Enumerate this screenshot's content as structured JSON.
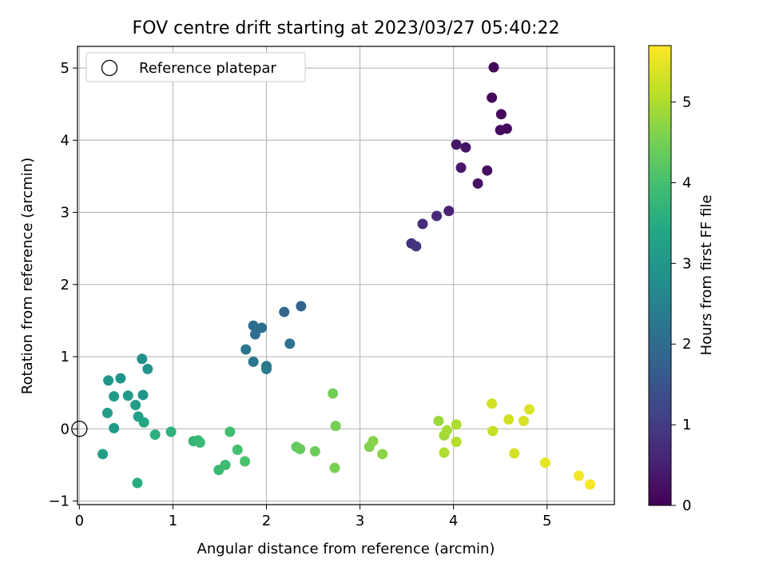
{
  "chart_data": {
    "type": "scatter",
    "title": "FOV centre drift starting at 2023/03/27 05:40:22",
    "xlabel": "Angular distance from reference (arcmin)",
    "ylabel": "Rotation from reference (arcmin)",
    "xlim": [
      -0.02,
      5.72
    ],
    "ylim": [
      -1.05,
      5.3
    ],
    "xticks": [
      "0",
      "1",
      "2",
      "3",
      "4",
      "5"
    ],
    "yticks": [
      "−1",
      "0",
      "1",
      "2",
      "3",
      "4",
      "5"
    ],
    "grid": true,
    "legend": {
      "position": "top-left",
      "entries": [
        "Reference platepar"
      ]
    },
    "reference_point": {
      "x": 0,
      "y": 0
    },
    "colorbar": {
      "label": "Hours from first FF file",
      "range": [
        0,
        5.7
      ],
      "ticks": [
        "0",
        "1",
        "2",
        "3",
        "4",
        "5"
      ],
      "colormap": "viridis"
    },
    "points": [
      {
        "x": 4.43,
        "y": 5.01,
        "h": 0.05
      },
      {
        "x": 4.41,
        "y": 4.59,
        "h": 0.1
      },
      {
        "x": 4.51,
        "y": 4.36,
        "h": 0.12
      },
      {
        "x": 4.57,
        "y": 4.16,
        "h": 0.15
      },
      {
        "x": 4.5,
        "y": 4.14,
        "h": 0.18
      },
      {
        "x": 4.03,
        "y": 3.94,
        "h": 0.35
      },
      {
        "x": 4.13,
        "y": 3.9,
        "h": 0.32
      },
      {
        "x": 4.08,
        "y": 3.62,
        "h": 0.38
      },
      {
        "x": 4.36,
        "y": 3.58,
        "h": 0.22
      },
      {
        "x": 4.26,
        "y": 3.4,
        "h": 0.28
      },
      {
        "x": 3.95,
        "y": 3.02,
        "h": 0.55
      },
      {
        "x": 3.82,
        "y": 2.95,
        "h": 0.62
      },
      {
        "x": 3.67,
        "y": 2.84,
        "h": 0.7
      },
      {
        "x": 3.55,
        "y": 2.57,
        "h": 0.82
      },
      {
        "x": 3.6,
        "y": 2.53,
        "h": 0.85
      },
      {
        "x": 2.37,
        "y": 1.7,
        "h": 1.82
      },
      {
        "x": 2.19,
        "y": 1.62,
        "h": 1.88
      },
      {
        "x": 1.86,
        "y": 1.43,
        "h": 2.05
      },
      {
        "x": 1.95,
        "y": 1.4,
        "h": 2.1
      },
      {
        "x": 1.88,
        "y": 1.31,
        "h": 2.0
      },
      {
        "x": 2.25,
        "y": 1.18,
        "h": 2.15
      },
      {
        "x": 1.78,
        "y": 1.1,
        "h": 2.22
      },
      {
        "x": 1.86,
        "y": 0.93,
        "h": 2.25
      },
      {
        "x": 2.0,
        "y": 0.87,
        "h": 2.3
      },
      {
        "x": 2.0,
        "y": 0.83,
        "h": 2.35
      },
      {
        "x": 0.67,
        "y": 0.97,
        "h": 2.85
      },
      {
        "x": 0.73,
        "y": 0.83,
        "h": 2.9
      },
      {
        "x": 0.44,
        "y": 0.7,
        "h": 2.95
      },
      {
        "x": 0.31,
        "y": 0.67,
        "h": 2.92
      },
      {
        "x": 0.68,
        "y": 0.47,
        "h": 3.0
      },
      {
        "x": 0.37,
        "y": 0.45,
        "h": 3.05
      },
      {
        "x": 0.52,
        "y": 0.46,
        "h": 3.1
      },
      {
        "x": 0.6,
        "y": 0.33,
        "h": 3.12
      },
      {
        "x": 0.3,
        "y": 0.22,
        "h": 3.15
      },
      {
        "x": 0.63,
        "y": 0.17,
        "h": 3.2
      },
      {
        "x": 0.69,
        "y": 0.09,
        "h": 3.4
      },
      {
        "x": 0.37,
        "y": 0.01,
        "h": 3.1
      },
      {
        "x": 0.25,
        "y": -0.35,
        "h": 3.2
      },
      {
        "x": 0.62,
        "y": -0.75,
        "h": 3.5
      },
      {
        "x": 0.81,
        "y": -0.08,
        "h": 3.6
      },
      {
        "x": 0.98,
        "y": -0.04,
        "h": 3.65
      },
      {
        "x": 1.22,
        "y": -0.17,
        "h": 3.75
      },
      {
        "x": 1.27,
        "y": -0.16,
        "h": 3.8
      },
      {
        "x": 1.29,
        "y": -0.19,
        "h": 3.85
      },
      {
        "x": 1.61,
        "y": -0.04,
        "h": 3.95
      },
      {
        "x": 1.69,
        "y": -0.29,
        "h": 4.0
      },
      {
        "x": 1.77,
        "y": -0.45,
        "h": 4.05
      },
      {
        "x": 1.56,
        "y": -0.5,
        "h": 3.9
      },
      {
        "x": 1.49,
        "y": -0.57,
        "h": 3.85
      },
      {
        "x": 2.71,
        "y": 0.49,
        "h": 4.45
      },
      {
        "x": 2.74,
        "y": 0.04,
        "h": 4.5
      },
      {
        "x": 2.32,
        "y": -0.25,
        "h": 4.3
      },
      {
        "x": 2.36,
        "y": -0.28,
        "h": 4.35
      },
      {
        "x": 2.52,
        "y": -0.31,
        "h": 4.4
      },
      {
        "x": 2.73,
        "y": -0.54,
        "h": 4.55
      },
      {
        "x": 3.1,
        "y": -0.25,
        "h": 4.6
      },
      {
        "x": 3.14,
        "y": -0.17,
        "h": 4.65
      },
      {
        "x": 3.24,
        "y": -0.35,
        "h": 4.7
      },
      {
        "x": 3.84,
        "y": 0.11,
        "h": 4.85
      },
      {
        "x": 3.9,
        "y": -0.09,
        "h": 4.9
      },
      {
        "x": 3.93,
        "y": -0.02,
        "h": 4.95
      },
      {
        "x": 4.03,
        "y": 0.06,
        "h": 5.0
      },
      {
        "x": 4.03,
        "y": -0.18,
        "h": 5.05
      },
      {
        "x": 3.9,
        "y": -0.33,
        "h": 5.0
      },
      {
        "x": 4.41,
        "y": 0.35,
        "h": 5.3
      },
      {
        "x": 4.42,
        "y": -0.03,
        "h": 5.2
      },
      {
        "x": 4.59,
        "y": 0.13,
        "h": 5.3
      },
      {
        "x": 4.75,
        "y": 0.11,
        "h": 5.35
      },
      {
        "x": 4.81,
        "y": 0.27,
        "h": 5.4
      },
      {
        "x": 4.65,
        "y": -0.34,
        "h": 5.35
      },
      {
        "x": 4.98,
        "y": -0.47,
        "h": 5.5
      },
      {
        "x": 5.34,
        "y": -0.65,
        "h": 5.6
      },
      {
        "x": 5.46,
        "y": -0.77,
        "h": 5.65
      }
    ]
  }
}
